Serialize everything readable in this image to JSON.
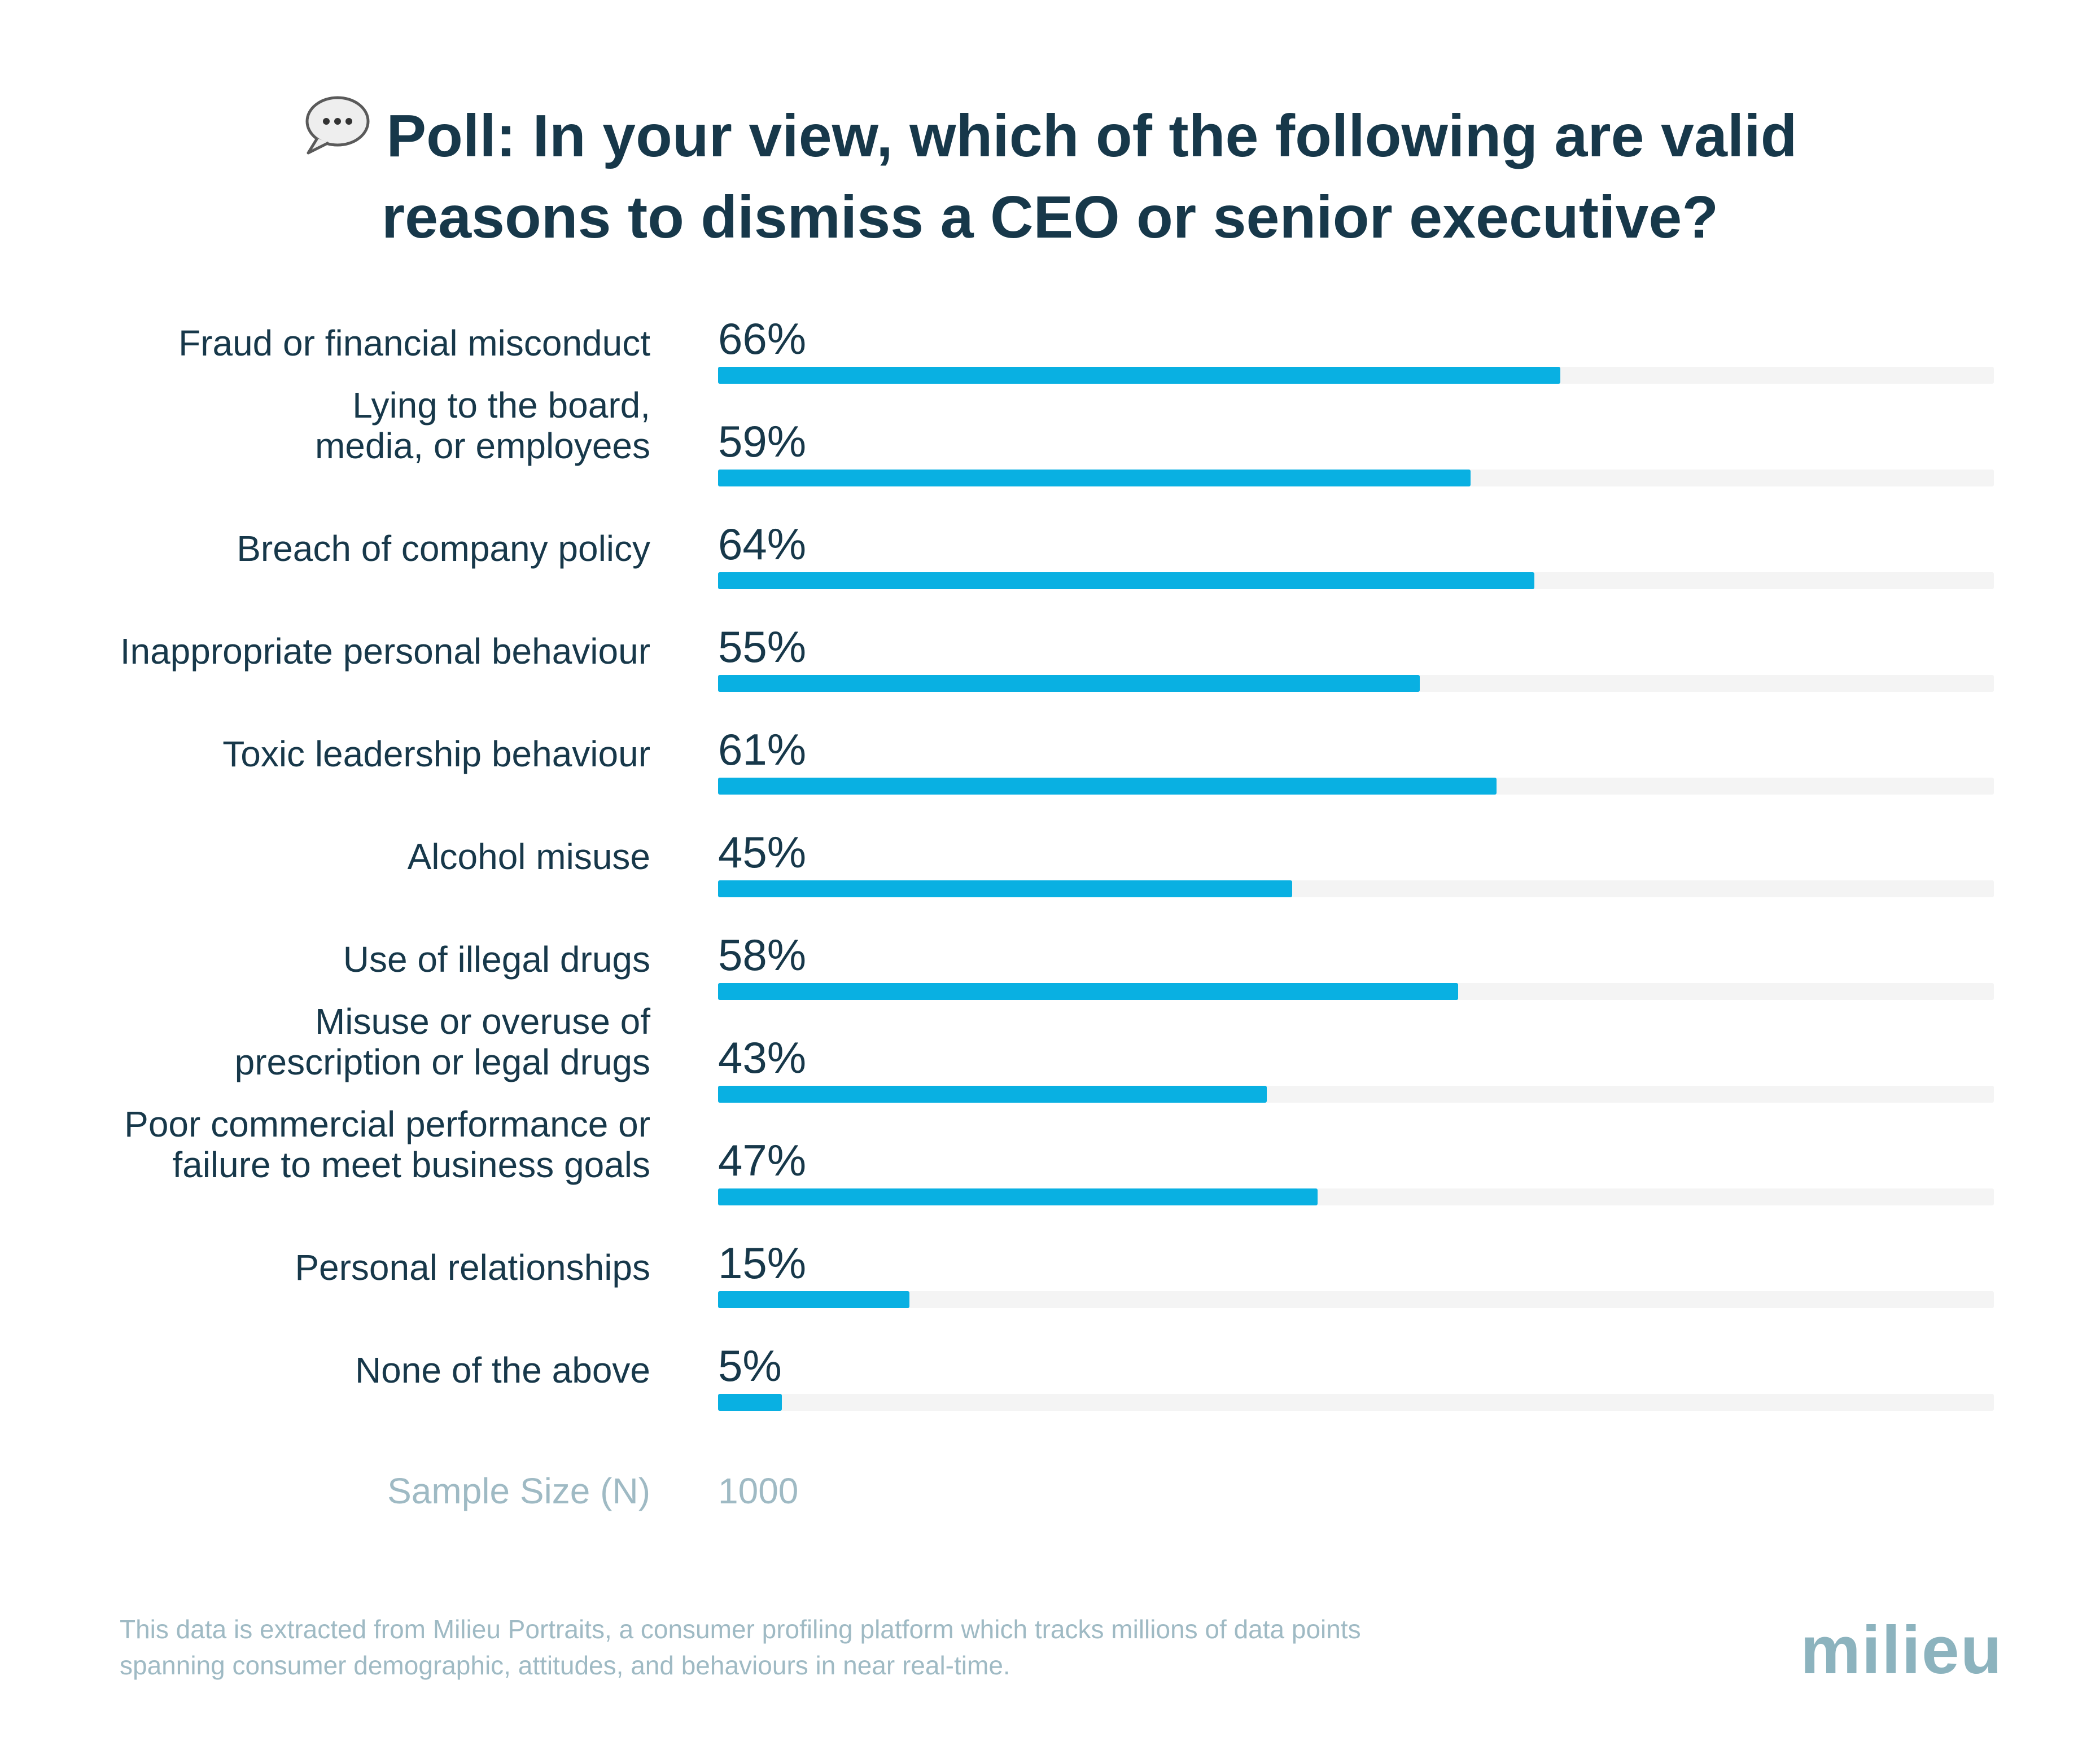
{
  "header": {
    "title_line1": "Poll: In your view, which of the following are valid",
    "title_line2": "reasons to dismiss a CEO or senior executive?",
    "icon": "speech-bubble-icon"
  },
  "chart_data": {
    "type": "bar",
    "orientation": "horizontal",
    "categories": [
      [
        "Fraud or financial misconduct"
      ],
      [
        "Lying to the board,",
        "media, or employees"
      ],
      [
        "Breach of company policy"
      ],
      [
        "Inappropriate personal behaviour"
      ],
      [
        "Toxic leadership behaviour"
      ],
      [
        "Alcohol misuse"
      ],
      [
        "Use of illegal drugs"
      ],
      [
        "Misuse or overuse of",
        "prescription or legal drugs"
      ],
      [
        "Poor commercial performance or",
        "failure to meet business goals"
      ],
      [
        "Personal relationships"
      ],
      [
        "None of the above"
      ]
    ],
    "values": [
      66,
      59,
      64,
      55,
      61,
      45,
      58,
      43,
      47,
      15,
      5
    ],
    "value_labels": [
      "66%",
      "59%",
      "64%",
      "55%",
      "61%",
      "45%",
      "58%",
      "43%",
      "47%",
      "15%",
      "5%"
    ],
    "xlim": [
      0,
      100
    ],
    "grid": false,
    "colors": {
      "bar": "#09b0e2",
      "track": "#f4f4f4",
      "text": "#17384a",
      "muted": "#9fbac4"
    }
  },
  "sample": {
    "label": "Sample Size (N)",
    "value": "1000"
  },
  "footnote": {
    "line1": "This data is extracted from Milieu Portraits, a consumer profiling platform which tracks millions of data points",
    "line2": "spanning consumer demographic, attitudes, and behaviours in near real-time."
  },
  "brand": {
    "name": "milieu"
  }
}
